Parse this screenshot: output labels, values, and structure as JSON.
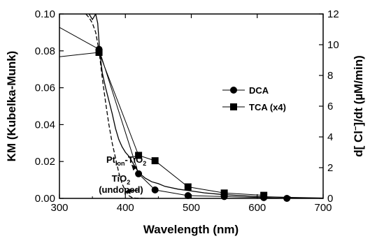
{
  "chart_data": {
    "type": "line",
    "xlabel": "Wavelength (nm)",
    "ylabel_left": "KM (Kubelka-Munk)",
    "ylabel_right": {
      "pre": "d[ Cl",
      "sup": "−",
      "post": "]/dt (µM/min)"
    },
    "xlim": [
      300,
      700
    ],
    "ylim_left": [
      0,
      0.1
    ],
    "ylim_right": [
      0,
      12
    ],
    "x_ticks": [
      300,
      400,
      500,
      600,
      700
    ],
    "y_left_ticks": [
      0.0,
      0.02,
      0.04,
      0.06,
      0.08,
      0.1
    ],
    "y_left_tick_labels": [
      "0.00",
      "0.02",
      "0.04",
      "0.06",
      "0.08",
      "0.10"
    ],
    "y_right_ticks": [
      0,
      2,
      4,
      6,
      8,
      10,
      12
    ],
    "legend_position": "right-center",
    "series": [
      {
        "name": "DCA",
        "axis": "right",
        "marker": "circle",
        "x": [
          297,
          360,
          420,
          445,
          495,
          550,
          610,
          645
        ],
        "y": [
          11.2,
          9.7,
          1.6,
          0.55,
          0.18,
          0.12,
          0.05,
          0.0
        ]
      },
      {
        "name": "TCA (x4)",
        "axis": "right",
        "marker": "square",
        "x": [
          297,
          360,
          420,
          445,
          495,
          550,
          610
        ],
        "y": [
          9.2,
          9.5,
          2.8,
          2.45,
          0.75,
          0.35,
          0.2
        ]
      },
      {
        "name": "Pt_ion-TiO2 spectrum",
        "axis": "left",
        "style": "solid",
        "x": [
          340,
          345,
          350,
          355,
          358,
          360,
          362,
          365,
          370,
          375,
          380,
          385,
          390,
          395,
          400,
          405,
          410,
          415,
          420,
          430,
          440,
          450,
          460,
          480,
          500,
          520,
          550,
          600,
          650,
          700
        ],
        "y": [
          0.105,
          0.1,
          0.097,
          0.1,
          0.095,
          0.085,
          0.077,
          0.068,
          0.06,
          0.053,
          0.046,
          0.038,
          0.032,
          0.028,
          0.025,
          0.023,
          0.02,
          0.017,
          0.014,
          0.011,
          0.009,
          0.008,
          0.0065,
          0.005,
          0.004,
          0.003,
          0.002,
          0.001,
          0.0005,
          0.0002
        ]
      },
      {
        "name": "TiO2 (undoped) spectrum",
        "axis": "left",
        "style": "dashed",
        "x": [
          340,
          345,
          350,
          355,
          360,
          365,
          370,
          375,
          380,
          385,
          390,
          395,
          400,
          405,
          410,
          415,
          420,
          430
        ],
        "y": [
          0.1,
          0.098,
          0.095,
          0.09,
          0.08,
          0.065,
          0.052,
          0.04,
          0.03,
          0.022,
          0.014,
          0.008,
          0.004,
          0.0015,
          0.0005,
          0.0002,
          0.0001,
          0.0
        ]
      }
    ],
    "annotations": [
      {
        "label": "Pt",
        "sub": "ion",
        "label2": "-TiO",
        "sub2": "2",
        "arrow_to_x": 410,
        "arrow_to_y_left": 0.018
      },
      {
        "label": "TiO",
        "sub": "2",
        "label_line2": "(undoped)",
        "arrow_to_x": 400,
        "arrow_to_y_left": 0.002
      }
    ]
  }
}
